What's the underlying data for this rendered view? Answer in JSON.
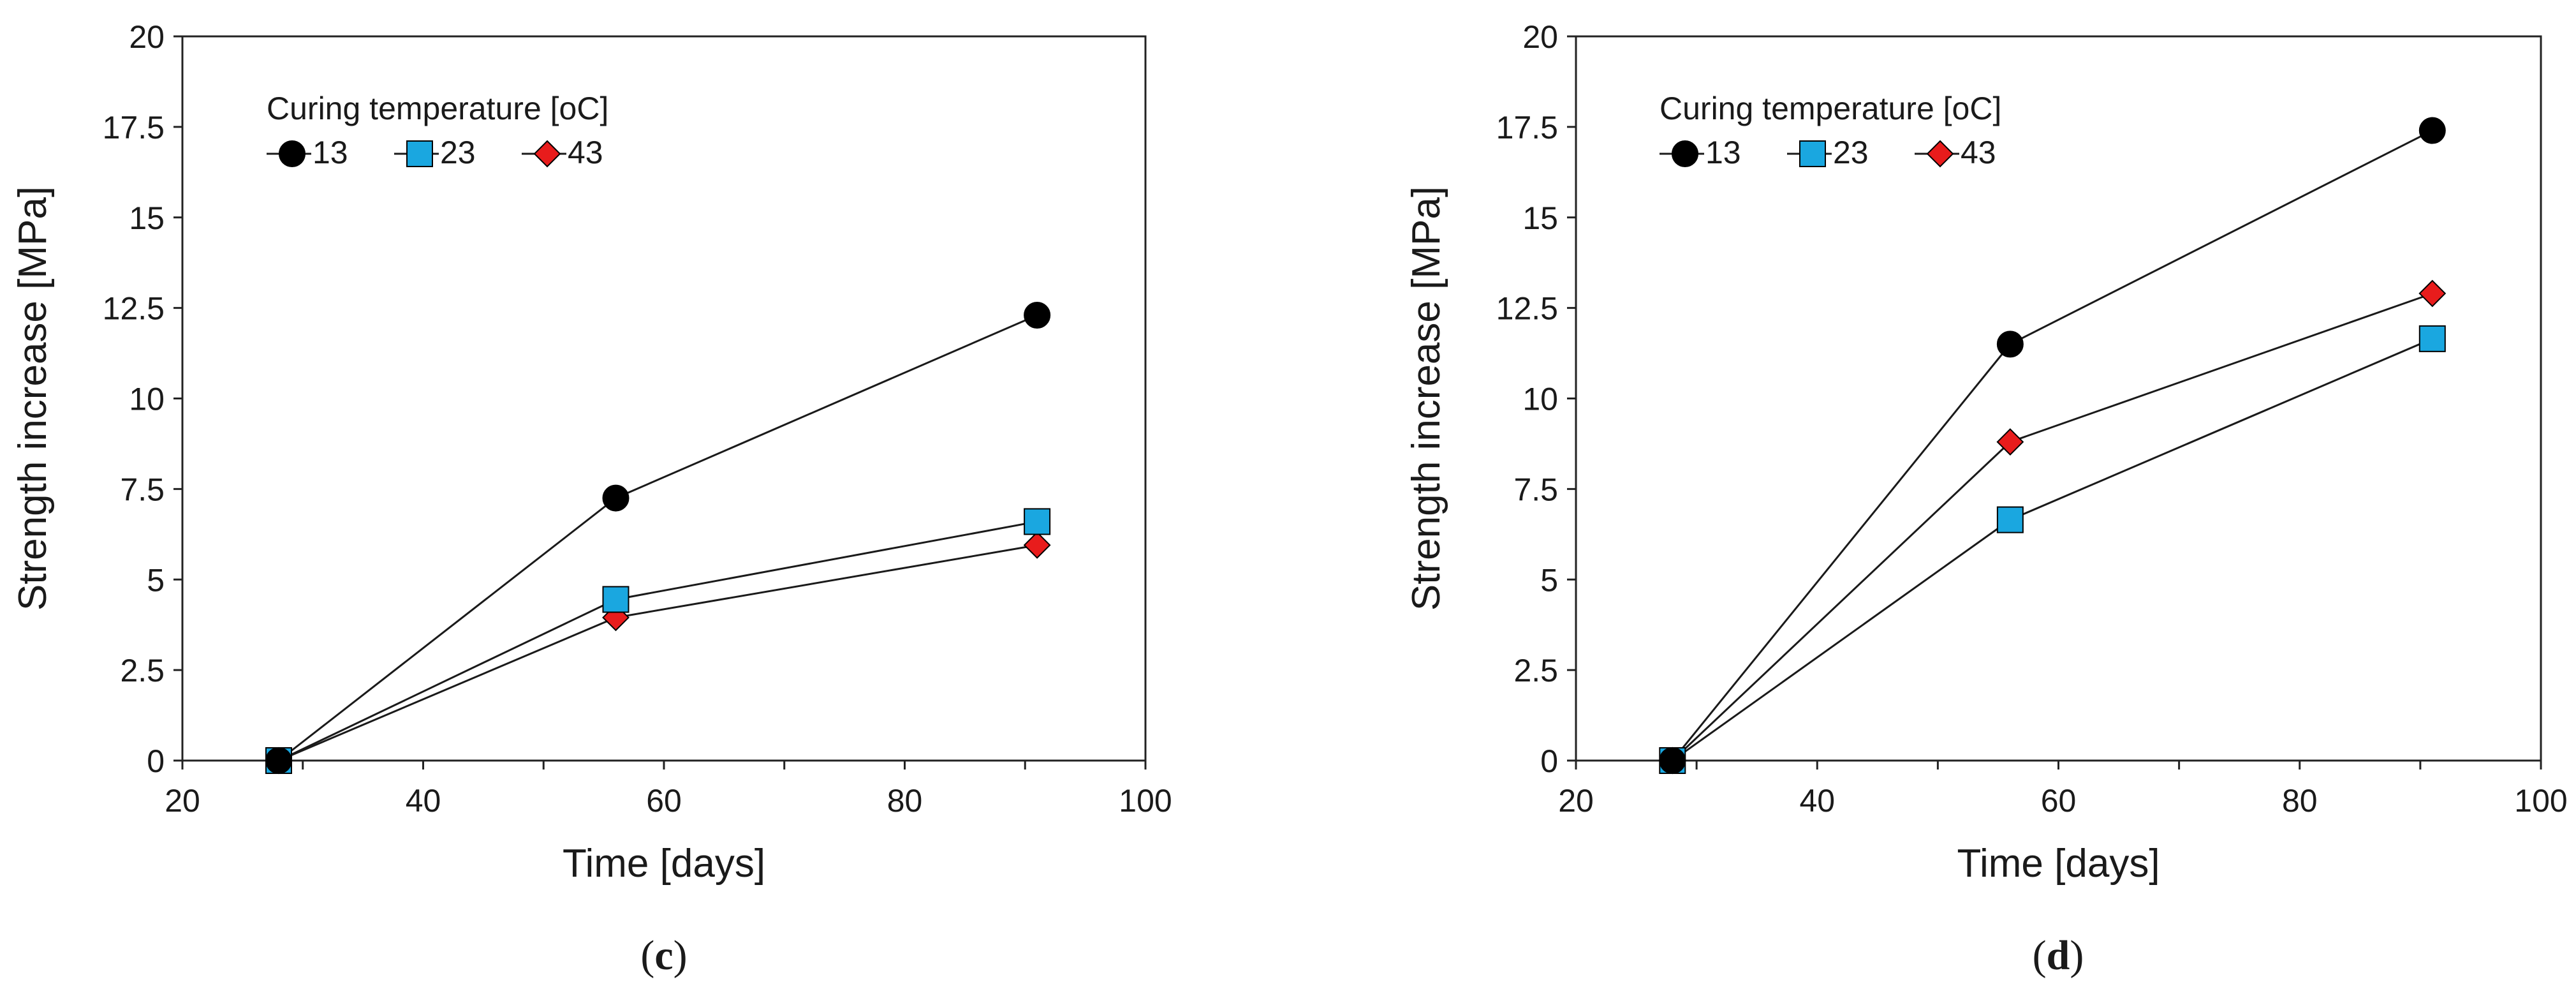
{
  "chart_data": [
    {
      "panel": "c",
      "caption_open": "(",
      "caption_letter": "c",
      "caption_close": ")",
      "type": "line",
      "xlabel": "Time [days]",
      "ylabel": "Strength increase [MPa]",
      "xlim": [
        20,
        100
      ],
      "ylim": [
        0,
        20
      ],
      "xticks": [
        "20",
        "40",
        "60",
        "80",
        "100"
      ],
      "yticks": [
        "0",
        "2.5",
        "5",
        "7.5",
        "10",
        "12.5",
        "15",
        "17.5",
        "20"
      ],
      "x": [
        28,
        56,
        91
      ],
      "legend_title": "Curing temperature [oC]",
      "legend_placement": "top-left",
      "series": [
        {
          "name": "13",
          "marker": "circle",
          "color": "#000000",
          "values": [
            0,
            7.25,
            12.3
          ]
        },
        {
          "name": "23",
          "marker": "square",
          "color": "#1aa7e0",
          "values": [
            0,
            4.45,
            6.6
          ]
        },
        {
          "name": "43",
          "marker": "diamond",
          "color": "#e81c1c",
          "values": [
            0,
            3.95,
            5.95
          ]
        }
      ]
    },
    {
      "panel": "d",
      "caption_open": "(",
      "caption_letter": "d",
      "caption_close": ")",
      "type": "line",
      "xlabel": "Time [days]",
      "ylabel": "Strength increase [MPa]",
      "xlim": [
        20,
        100
      ],
      "ylim": [
        0,
        20
      ],
      "xticks": [
        "20",
        "40",
        "60",
        "80",
        "100"
      ],
      "yticks": [
        "0",
        "2.5",
        "5",
        "7.5",
        "10",
        "12.5",
        "15",
        "17.5",
        "20"
      ],
      "x": [
        28,
        56,
        91
      ],
      "legend_title": "Curing temperature [oC]",
      "legend_placement": "top-left",
      "series": [
        {
          "name": "13",
          "marker": "circle",
          "color": "#000000",
          "values": [
            0,
            11.5,
            17.4
          ]
        },
        {
          "name": "23",
          "marker": "square",
          "color": "#1aa7e0",
          "values": [
            0,
            6.65,
            11.65
          ]
        },
        {
          "name": "43",
          "marker": "diamond",
          "color": "#e81c1c",
          "values": [
            0,
            8.8,
            12.9
          ]
        }
      ]
    }
  ]
}
